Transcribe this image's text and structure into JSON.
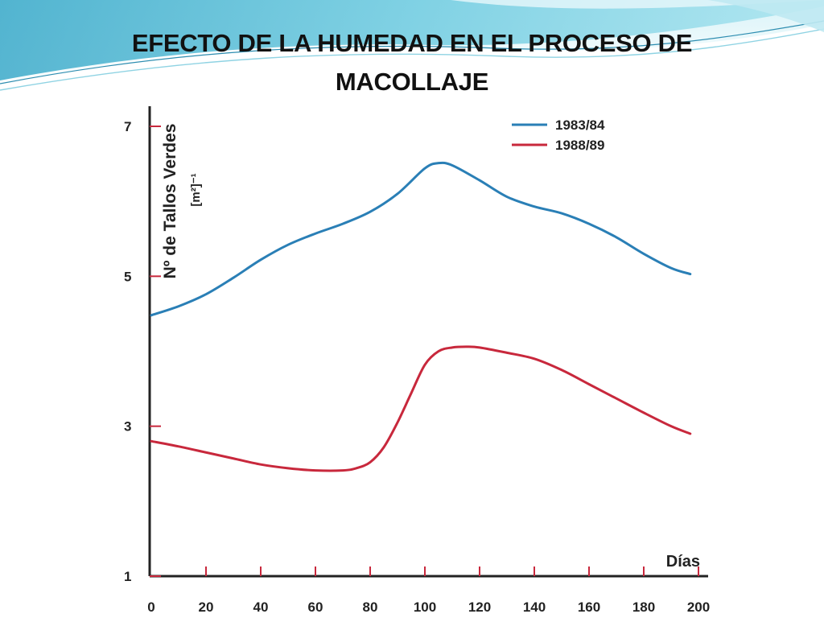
{
  "slide": {
    "title": "EFECTO DE LA HUMEDAD EN EL PROCESO DE\nMACOLLAJE"
  },
  "chart_data": {
    "type": "line",
    "title": "",
    "xlabel": "Días",
    "ylabel": "Nº de Tallos Verdes",
    "ylabel_unit": "[m²]⁻¹",
    "xlim": [
      0,
      200
    ],
    "ylim": [
      1,
      7
    ],
    "xticks": [
      "0",
      "20",
      "40",
      "60",
      "80",
      "100",
      "120",
      "140",
      "160",
      "180",
      "200"
    ],
    "yticks": [
      "1",
      "3",
      "5",
      "7"
    ],
    "grid": false,
    "legend_position": "top-right",
    "series": [
      {
        "name": "1983/84",
        "color": "#2a7fb6",
        "x": [
          0,
          10,
          20,
          30,
          40,
          50,
          60,
          70,
          80,
          90,
          100,
          105,
          110,
          120,
          130,
          140,
          150,
          160,
          170,
          180,
          190,
          197
        ],
        "y": [
          4.48,
          4.6,
          4.76,
          4.98,
          5.22,
          5.42,
          5.57,
          5.7,
          5.86,
          6.1,
          6.44,
          6.51,
          6.48,
          6.28,
          6.06,
          5.93,
          5.84,
          5.7,
          5.52,
          5.3,
          5.11,
          5.03
        ]
      },
      {
        "name": "1988/89",
        "color": "#c8283c",
        "x": [
          0,
          10,
          20,
          30,
          40,
          50,
          60,
          70,
          75,
          80,
          85,
          90,
          95,
          100,
          105,
          110,
          115,
          120,
          130,
          140,
          150,
          160,
          170,
          180,
          190,
          197
        ],
        "y": [
          2.8,
          2.73,
          2.65,
          2.57,
          2.49,
          2.44,
          2.41,
          2.41,
          2.44,
          2.52,
          2.72,
          3.05,
          3.44,
          3.82,
          4.0,
          4.05,
          4.06,
          4.05,
          3.98,
          3.9,
          3.75,
          3.56,
          3.37,
          3.18,
          3.0,
          2.9
        ]
      }
    ]
  }
}
